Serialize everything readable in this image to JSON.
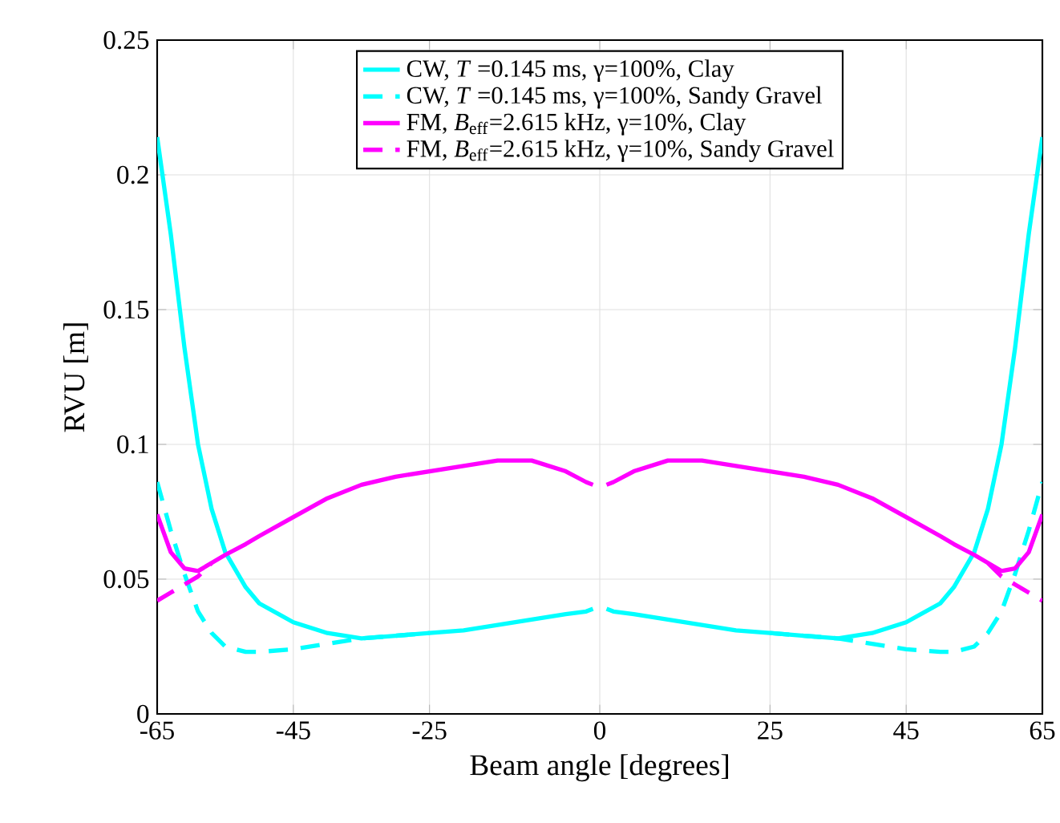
{
  "chart_data": {
    "type": "line",
    "xlabel": "Beam angle [degrees]",
    "ylabel": "RVU [m]",
    "x": [
      -65,
      -63,
      -61,
      -59,
      -57,
      -55,
      -52,
      -50,
      -45,
      -40,
      -35,
      -30,
      -25,
      -20,
      -15,
      -10,
      -5,
      -2,
      -1,
      0,
      1,
      2,
      5,
      10,
      15,
      20,
      25,
      30,
      35,
      40,
      45,
      50,
      52,
      55,
      57,
      59,
      61,
      63,
      65
    ],
    "series": [
      {
        "name": "CW, *T* =0.145 ms, γ=100%, Clay",
        "color": "#00ffff",
        "line_style": "solid",
        "values": [
          0.214,
          0.178,
          0.136,
          0.1,
          0.076,
          0.06,
          0.047,
          0.041,
          0.034,
          0.03,
          0.028,
          0.029,
          0.03,
          0.031,
          0.033,
          0.035,
          0.037,
          0.038,
          0.039,
          null,
          0.039,
          0.038,
          0.037,
          0.035,
          0.033,
          0.031,
          0.03,
          0.029,
          0.028,
          0.03,
          0.034,
          0.041,
          0.047,
          0.06,
          0.076,
          0.1,
          0.136,
          0.178,
          0.214
        ]
      },
      {
        "name": "CW, *T* =0.145 ms, γ=100%, Sandy Gravel",
        "color": "#00ffff",
        "line_style": "dashed",
        "values": [
          0.086,
          0.068,
          0.052,
          0.038,
          0.03,
          0.025,
          0.023,
          0.023,
          0.024,
          0.026,
          0.028,
          0.029,
          0.03,
          null,
          null,
          null,
          null,
          null,
          null,
          null,
          null,
          null,
          null,
          null,
          null,
          null,
          0.03,
          0.029,
          0.028,
          0.026,
          0.024,
          0.023,
          0.023,
          0.025,
          0.03,
          0.038,
          0.052,
          0.068,
          0.086
        ]
      },
      {
        "name": "FM, *B*$_{eff}$=2.615 kHz, γ=10%, Clay",
        "color": "#ff00ff",
        "line_style": "solid",
        "values": [
          0.074,
          0.06,
          0.054,
          0.053,
          0.056,
          0.059,
          0.063,
          0.066,
          0.073,
          0.08,
          0.085,
          0.088,
          0.09,
          0.092,
          0.094,
          0.094,
          0.09,
          0.086,
          0.085,
          null,
          0.085,
          0.086,
          0.09,
          0.094,
          0.094,
          0.092,
          0.09,
          0.088,
          0.085,
          0.08,
          0.073,
          0.066,
          0.063,
          0.059,
          0.056,
          0.053,
          0.054,
          0.06,
          0.074
        ]
      },
      {
        "name": "FM, *B*$_{eff}$=2.615 kHz, γ=10%, Sandy Gravel",
        "color": "#ff00ff",
        "line_style": "dashed",
        "values": [
          0.042,
          0.045,
          0.048,
          0.051,
          0.056,
          null,
          null,
          null,
          null,
          null,
          null,
          null,
          null,
          null,
          null,
          null,
          null,
          null,
          null,
          null,
          null,
          null,
          null,
          null,
          null,
          null,
          null,
          null,
          null,
          null,
          null,
          null,
          null,
          null,
          0.056,
          0.051,
          0.048,
          0.045,
          0.042
        ]
      }
    ],
    "xlim": [
      -65,
      65
    ],
    "xticks": [
      -65,
      -45,
      -25,
      0,
      25,
      45,
      65
    ],
    "ylim": [
      0,
      0.25
    ],
    "yticks": [
      0,
      0.05,
      0.1,
      0.15,
      0.2,
      0.25
    ],
    "grid": true,
    "legend": "top",
    "marker": "none"
  }
}
